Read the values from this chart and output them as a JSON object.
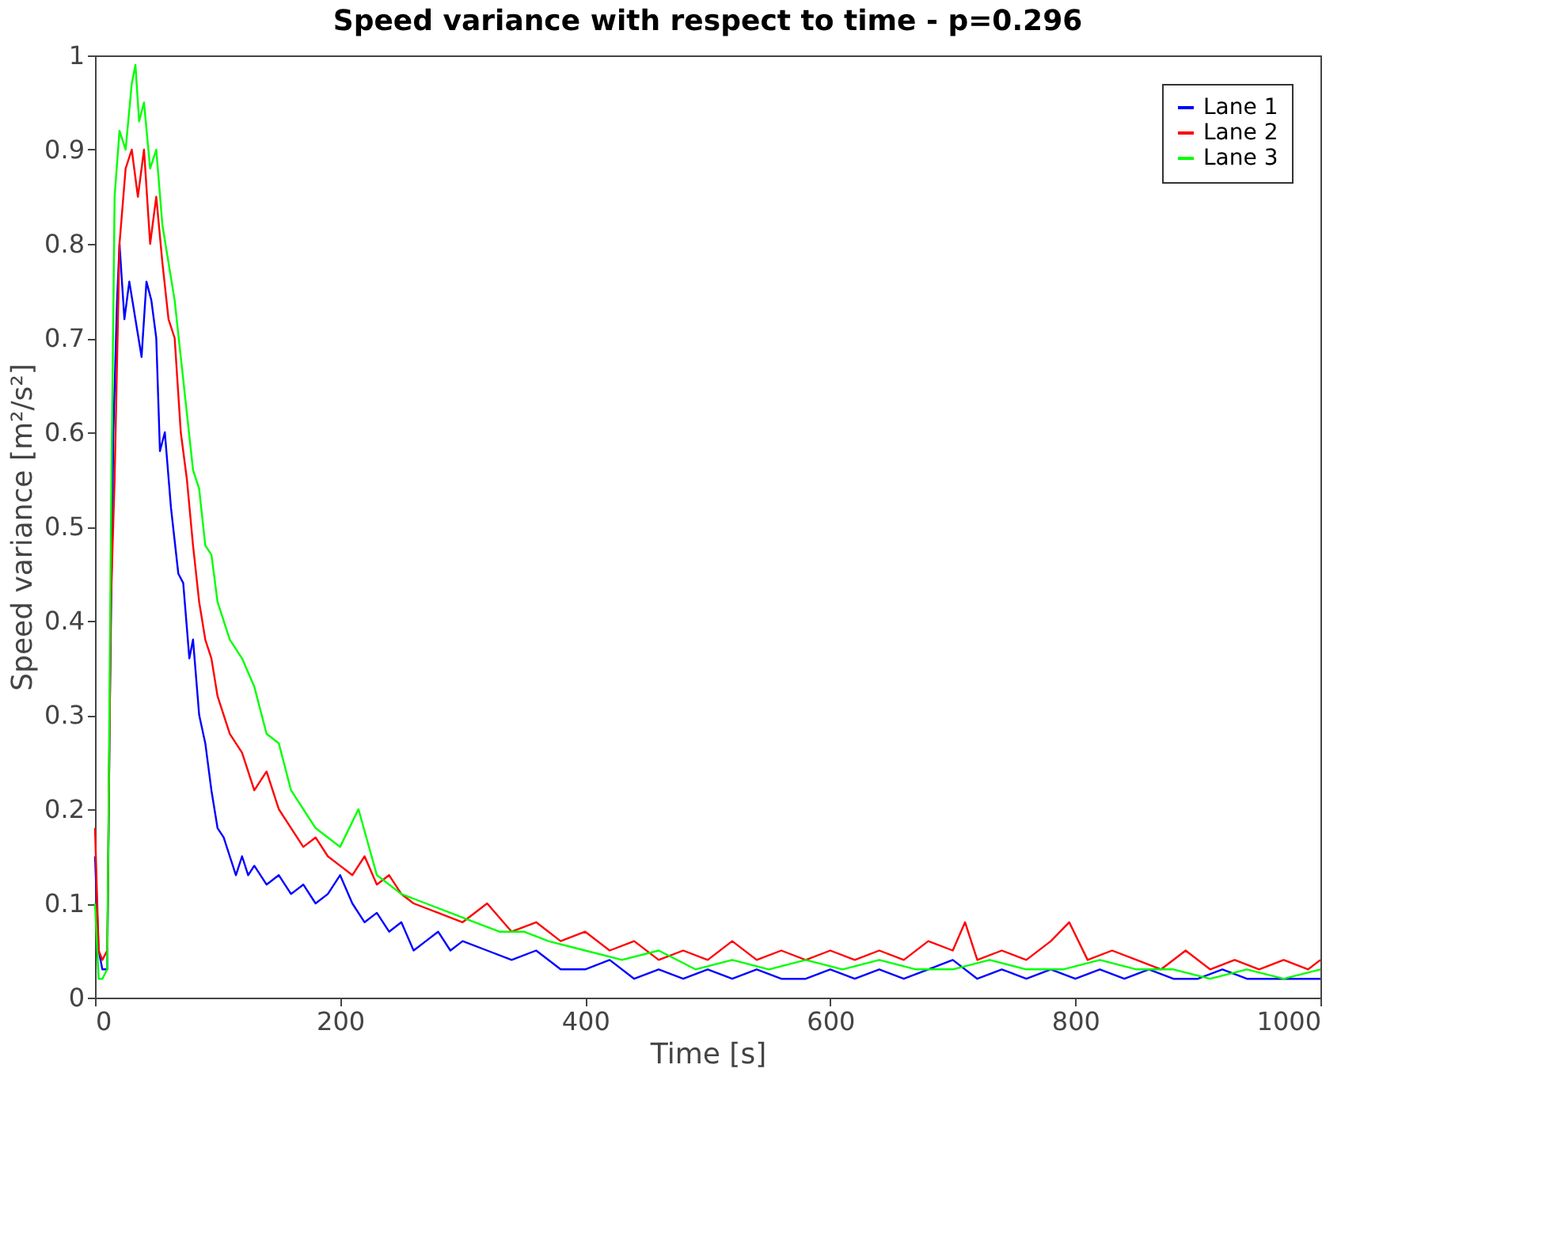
{
  "chart_data": {
    "type": "line",
    "title": "Speed variance with respect to time - p=0.296",
    "xlabel": "Time [s]",
    "ylabel": "Speed variance [m²/s²]",
    "xlim": [
      0,
      1000
    ],
    "ylim": [
      0,
      1
    ],
    "xticks": [
      0,
      200,
      400,
      600,
      800,
      1000
    ],
    "yticks": [
      0,
      0.1,
      0.2,
      0.3,
      0.4,
      0.5,
      0.6,
      0.7,
      0.8,
      0.9,
      1
    ],
    "grid": false,
    "legend": "top right",
    "marker": "none",
    "line_style": "solid",
    "series": [
      {
        "name": "Lane 1",
        "color": "#0000ff",
        "x": [
          0,
          3,
          6,
          10,
          12,
          15,
          18,
          20,
          24,
          28,
          33,
          38,
          42,
          46,
          50,
          53,
          57,
          62,
          68,
          72,
          77,
          80,
          85,
          90,
          95,
          100,
          105,
          110,
          115,
          120,
          125,
          130,
          140,
          150,
          160,
          170,
          180,
          190,
          200,
          210,
          220,
          230,
          240,
          250,
          260,
          270,
          280,
          290,
          300,
          320,
          340,
          360,
          380,
          400,
          420,
          440,
          460,
          480,
          500,
          520,
          540,
          560,
          580,
          600,
          620,
          640,
          660,
          680,
          700,
          720,
          740,
          760,
          780,
          800,
          820,
          840,
          860,
          880,
          900,
          920,
          940,
          960,
          980,
          1000
        ],
        "values": [
          0.15,
          0.05,
          0.03,
          0.03,
          0.3,
          0.6,
          0.74,
          0.8,
          0.72,
          0.76,
          0.72,
          0.68,
          0.76,
          0.74,
          0.7,
          0.58,
          0.6,
          0.52,
          0.45,
          0.44,
          0.36,
          0.38,
          0.3,
          0.27,
          0.22,
          0.18,
          0.17,
          0.15,
          0.13,
          0.15,
          0.13,
          0.14,
          0.12,
          0.13,
          0.11,
          0.12,
          0.1,
          0.11,
          0.13,
          0.1,
          0.08,
          0.09,
          0.07,
          0.08,
          0.05,
          0.06,
          0.07,
          0.05,
          0.06,
          0.05,
          0.04,
          0.05,
          0.03,
          0.03,
          0.04,
          0.02,
          0.03,
          0.02,
          0.03,
          0.02,
          0.03,
          0.02,
          0.02,
          0.03,
          0.02,
          0.03,
          0.02,
          0.03,
          0.04,
          0.02,
          0.03,
          0.02,
          0.03,
          0.02,
          0.03,
          0.02,
          0.03,
          0.02,
          0.02,
          0.03,
          0.02,
          0.02,
          0.02,
          0.02
        ]
      },
      {
        "name": "Lane 2",
        "color": "#ff0000",
        "x": [
          0,
          3,
          6,
          10,
          13,
          16,
          20,
          25,
          30,
          35,
          40,
          45,
          50,
          55,
          60,
          65,
          70,
          75,
          80,
          85,
          90,
          95,
          100,
          110,
          120,
          130,
          140,
          150,
          160,
          170,
          180,
          190,
          200,
          210,
          220,
          230,
          240,
          250,
          260,
          280,
          300,
          320,
          340,
          360,
          380,
          400,
          420,
          440,
          460,
          480,
          500,
          520,
          540,
          560,
          580,
          600,
          620,
          640,
          660,
          680,
          700,
          710,
          720,
          740,
          760,
          780,
          795,
          810,
          830,
          850,
          870,
          890,
          910,
          930,
          950,
          970,
          990,
          1000
        ],
        "values": [
          0.18,
          0.05,
          0.04,
          0.05,
          0.42,
          0.55,
          0.8,
          0.88,
          0.9,
          0.85,
          0.9,
          0.8,
          0.85,
          0.78,
          0.72,
          0.7,
          0.6,
          0.55,
          0.48,
          0.42,
          0.38,
          0.36,
          0.32,
          0.28,
          0.26,
          0.22,
          0.24,
          0.2,
          0.18,
          0.16,
          0.17,
          0.15,
          0.14,
          0.13,
          0.15,
          0.12,
          0.13,
          0.11,
          0.1,
          0.09,
          0.08,
          0.1,
          0.07,
          0.08,
          0.06,
          0.07,
          0.05,
          0.06,
          0.04,
          0.05,
          0.04,
          0.06,
          0.04,
          0.05,
          0.04,
          0.05,
          0.04,
          0.05,
          0.04,
          0.06,
          0.05,
          0.08,
          0.04,
          0.05,
          0.04,
          0.06,
          0.08,
          0.04,
          0.05,
          0.04,
          0.03,
          0.05,
          0.03,
          0.04,
          0.03,
          0.04,
          0.03,
          0.04
        ]
      },
      {
        "name": "Lane 3",
        "color": "#00ff00",
        "x": [
          0,
          3,
          6,
          10,
          13,
          16,
          20,
          25,
          30,
          33,
          36,
          40,
          45,
          50,
          55,
          60,
          65,
          70,
          75,
          80,
          85,
          90,
          95,
          100,
          110,
          120,
          130,
          140,
          150,
          160,
          170,
          180,
          190,
          200,
          215,
          230,
          250,
          270,
          290,
          310,
          330,
          350,
          370,
          400,
          430,
          460,
          490,
          520,
          550,
          580,
          610,
          640,
          670,
          700,
          730,
          760,
          790,
          820,
          850,
          880,
          910,
          940,
          970,
          1000
        ],
        "values": [
          0.1,
          0.02,
          0.02,
          0.03,
          0.5,
          0.85,
          0.92,
          0.9,
          0.97,
          0.99,
          0.93,
          0.95,
          0.88,
          0.9,
          0.82,
          0.78,
          0.74,
          0.68,
          0.62,
          0.56,
          0.54,
          0.48,
          0.47,
          0.42,
          0.38,
          0.36,
          0.33,
          0.28,
          0.27,
          0.22,
          0.2,
          0.18,
          0.17,
          0.16,
          0.2,
          0.13,
          0.11,
          0.1,
          0.09,
          0.08,
          0.07,
          0.07,
          0.06,
          0.05,
          0.04,
          0.05,
          0.03,
          0.04,
          0.03,
          0.04,
          0.03,
          0.04,
          0.03,
          0.03,
          0.04,
          0.03,
          0.03,
          0.04,
          0.03,
          0.03,
          0.02,
          0.03,
          0.02,
          0.03
        ]
      }
    ]
  }
}
